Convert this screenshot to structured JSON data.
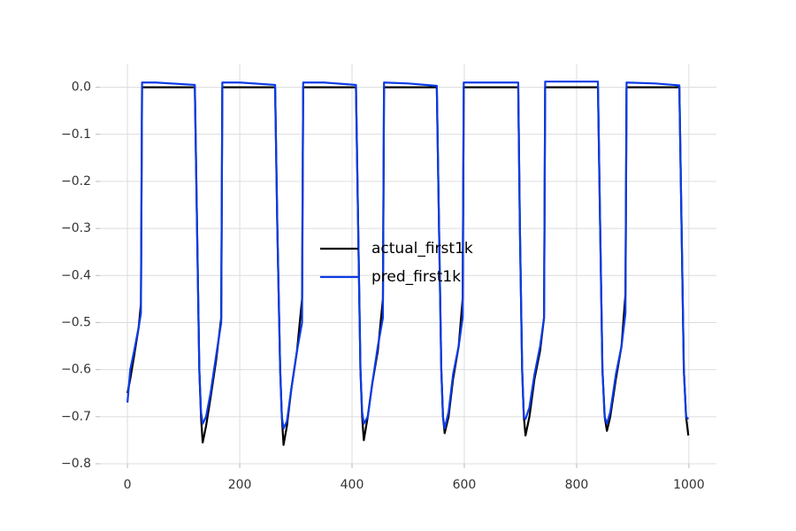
{
  "chart_data": {
    "type": "line",
    "x": [
      0,
      5,
      12,
      20,
      24,
      26,
      50,
      120,
      124,
      128,
      131,
      134,
      140,
      148,
      158,
      167,
      169,
      200,
      263,
      267,
      272,
      275,
      278,
      284,
      292,
      302,
      311,
      313,
      350,
      407,
      411,
      415,
      418,
      421,
      428,
      436,
      446,
      455,
      457,
      500,
      551,
      555,
      559,
      562,
      565,
      572,
      580,
      590,
      597,
      599,
      650,
      696,
      699,
      703,
      706,
      709,
      716,
      725,
      735,
      742,
      744,
      800,
      838,
      842,
      846,
      850,
      854,
      860,
      870,
      880,
      887,
      889,
      940,
      983,
      987,
      991,
      995,
      999
    ],
    "series": [
      {
        "name": "actual_first1k",
        "color": "#000000",
        "values": [
          -0.65,
          -0.62,
          -0.57,
          -0.51,
          -0.46,
          0,
          0,
          0,
          -0.3,
          -0.6,
          -0.7,
          -0.755,
          -0.72,
          -0.66,
          -0.58,
          -0.49,
          0,
          0,
          0,
          -0.3,
          -0.6,
          -0.7,
          -0.76,
          -0.72,
          -0.64,
          -0.56,
          -0.45,
          0,
          0,
          0,
          -0.3,
          -0.6,
          -0.7,
          -0.75,
          -0.7,
          -0.63,
          -0.56,
          -0.45,
          0,
          0,
          0,
          -0.3,
          -0.6,
          -0.7,
          -0.735,
          -0.7,
          -0.62,
          -0.55,
          -0.45,
          0,
          0,
          0,
          -0.3,
          -0.6,
          -0.7,
          -0.74,
          -0.7,
          -0.62,
          -0.56,
          -0.49,
          0,
          0,
          0,
          -0.3,
          -0.6,
          -0.7,
          -0.73,
          -0.7,
          -0.62,
          -0.55,
          -0.44,
          0,
          0,
          0,
          -0.3,
          -0.6,
          -0.7,
          -0.74
        ]
      },
      {
        "name": "pred_first1k",
        "color": "#0b3be6",
        "values": [
          -0.67,
          -0.6,
          -0.56,
          -0.51,
          -0.48,
          0.01,
          0.01,
          0.005,
          -0.3,
          -0.6,
          -0.69,
          -0.715,
          -0.7,
          -0.65,
          -0.57,
          -0.5,
          0.01,
          0.01,
          0.005,
          -0.3,
          -0.6,
          -0.7,
          -0.725,
          -0.71,
          -0.64,
          -0.56,
          -0.5,
          0.01,
          0.01,
          0.005,
          -0.3,
          -0.6,
          -0.69,
          -0.715,
          -0.7,
          -0.63,
          -0.55,
          -0.49,
          0.01,
          0.008,
          0.003,
          -0.3,
          -0.6,
          -0.7,
          -0.725,
          -0.69,
          -0.61,
          -0.55,
          -0.49,
          0.01,
          0.01,
          0.01,
          -0.3,
          -0.6,
          -0.7,
          -0.705,
          -0.68,
          -0.61,
          -0.55,
          -0.49,
          0.012,
          0.012,
          0.012,
          -0.3,
          -0.6,
          -0.7,
          -0.715,
          -0.69,
          -0.61,
          -0.55,
          -0.48,
          0.01,
          0.008,
          0.004,
          -0.3,
          -0.6,
          -0.7,
          -0.705
        ]
      }
    ],
    "xlim": [
      -49,
      1049
    ],
    "ylim": [
      -0.8,
      0.05
    ],
    "xticks": [
      0,
      200,
      400,
      600,
      800,
      1000
    ],
    "yticks": [
      {
        "value": 0,
        "label": "0.0"
      },
      {
        "value": -0.1,
        "label": "−0.1"
      },
      {
        "value": -0.2,
        "label": "−0.2"
      },
      {
        "value": -0.3,
        "label": "−0.3"
      },
      {
        "value": -0.4,
        "label": "−0.4"
      },
      {
        "value": -0.5,
        "label": "−0.5"
      },
      {
        "value": -0.6,
        "label": "−0.6"
      },
      {
        "value": -0.7,
        "label": "−0.7"
      },
      {
        "value": -0.8,
        "label": "−0.8"
      }
    ],
    "grid": true,
    "legend": "center"
  }
}
